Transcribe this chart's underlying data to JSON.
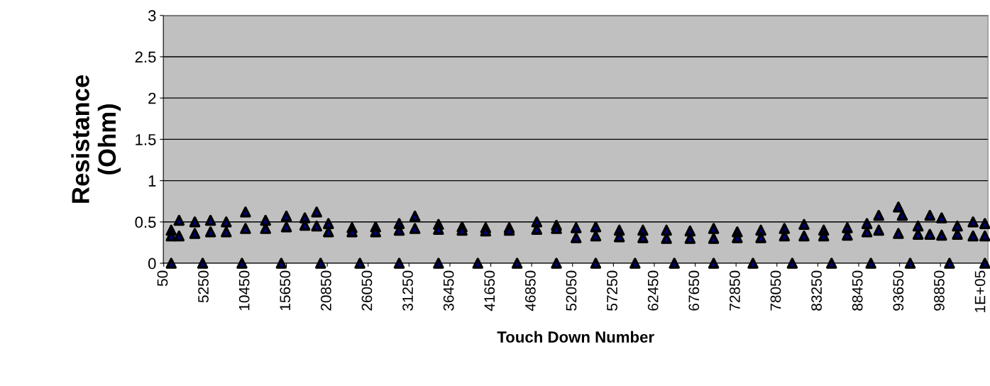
{
  "chart_data": {
    "type": "scatter",
    "xlabel": "Touch Down Number",
    "ylabel": "Resistance\n(Ohm)",
    "xlim": [
      0,
      104900
    ],
    "ylim": [
      0,
      3
    ],
    "yticks": [
      0,
      0.5,
      1,
      1.5,
      2,
      2.5,
      3
    ],
    "xticks": [
      50,
      5250,
      10450,
      15650,
      20850,
      26050,
      31250,
      36450,
      41650,
      46850,
      52050,
      57250,
      62450,
      67650,
      72850,
      78050,
      83250,
      88450,
      93650,
      98850,
      {
        "value": 104050,
        "label": "1E+05"
      }
    ],
    "grid": "y",
    "marker": "triangle",
    "series": [
      {
        "color": "#000000",
        "x": [
          1000,
          1000,
          2000,
          2000,
          4000,
          4000,
          6000,
          6000,
          8000,
          8000,
          10450,
          10450,
          13000,
          13000,
          15650,
          15650,
          18000,
          18000,
          19500,
          19500,
          21000,
          21000,
          24000,
          24000,
          27000,
          27000,
          30000,
          30000,
          32000,
          32000,
          35000,
          35000,
          38000,
          38000,
          41000,
          41000,
          44000,
          44000,
          47500,
          47500,
          50000,
          50000,
          52500,
          52500,
          55000,
          55000,
          58000,
          58000,
          61000,
          61000,
          64000,
          64000,
          67000,
          67000,
          70000,
          70000,
          73000,
          73000,
          76000,
          76000,
          79000,
          79000,
          81500,
          81500,
          84000,
          84000,
          87000,
          87000,
          89500,
          89500,
          91000,
          91000,
          93500,
          93500,
          94000,
          96000,
          96000,
          97500,
          97500,
          99000,
          99000,
          101000,
          101000,
          103000,
          103000,
          104500,
          104500
        ],
        "values": [
          0.4,
          0.33,
          0.52,
          0.33,
          0.5,
          0.36,
          0.52,
          0.38,
          0.5,
          0.38,
          0.62,
          0.42,
          0.52,
          0.42,
          0.57,
          0.44,
          0.55,
          0.46,
          0.62,
          0.45,
          0.48,
          0.38,
          0.43,
          0.38,
          0.44,
          0.38,
          0.48,
          0.4,
          0.57,
          0.42,
          0.47,
          0.41,
          0.44,
          0.4,
          0.43,
          0.39,
          0.43,
          0.4,
          0.5,
          0.41,
          0.46,
          0.42,
          0.43,
          0.31,
          0.44,
          0.33,
          0.4,
          0.32,
          0.4,
          0.31,
          0.4,
          0.3,
          0.39,
          0.3,
          0.42,
          0.3,
          0.38,
          0.31,
          0.4,
          0.31,
          0.42,
          0.33,
          0.47,
          0.33,
          0.4,
          0.33,
          0.43,
          0.34,
          0.48,
          0.38,
          0.58,
          0.4,
          0.68,
          0.36,
          0.58,
          0.45,
          0.35,
          0.58,
          0.35,
          0.55,
          0.34,
          0.45,
          0.35,
          0.5,
          0.33,
          0.48,
          0.33
        ]
      },
      {
        "color": "#000000",
        "x": [
          1000,
          5000,
          10000,
          15000,
          20000,
          25000,
          30000,
          35000,
          40000,
          45000,
          50000,
          55000,
          60000,
          65000,
          70000,
          75000,
          80000,
          85000,
          90000,
          95000,
          100000,
          104500
        ],
        "values": [
          0,
          0,
          0,
          0,
          0,
          0,
          0,
          0,
          0,
          0,
          0,
          0,
          0,
          0,
          0,
          0,
          0,
          0,
          0,
          0,
          0,
          0
        ]
      }
    ]
  }
}
